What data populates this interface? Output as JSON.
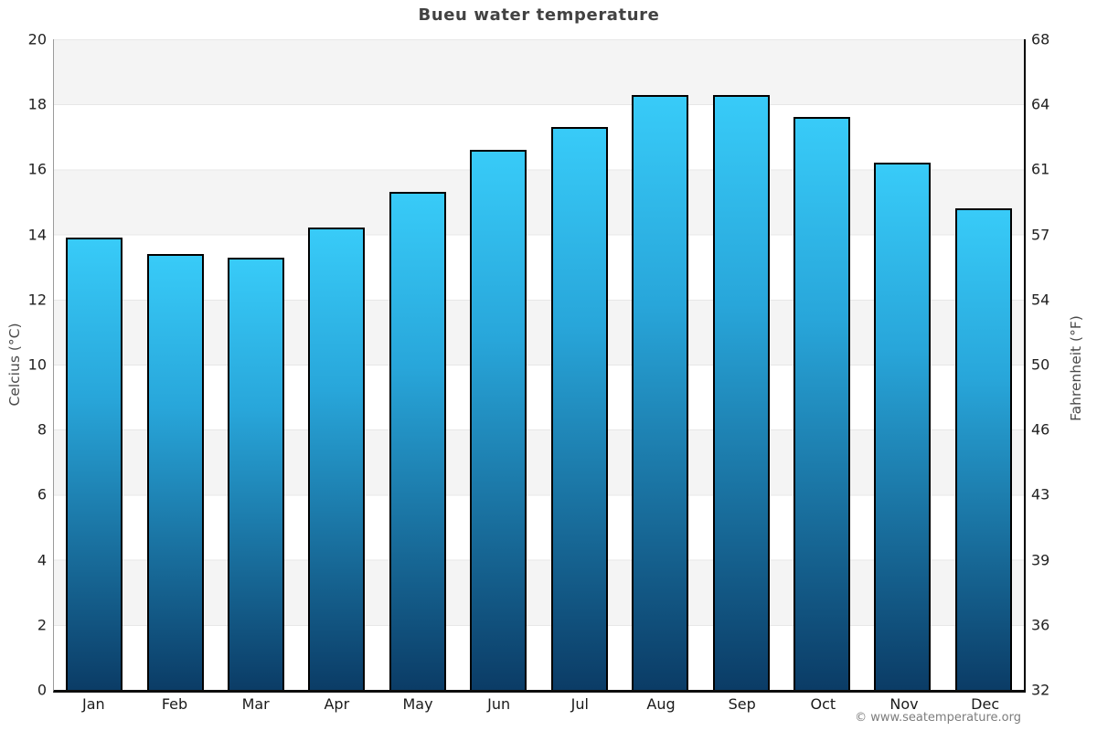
{
  "page": {
    "footer": "© www.seatemperature.org"
  },
  "chart_data": {
    "type": "bar",
    "title": "Bueu water temperature",
    "categories": [
      "Jan",
      "Feb",
      "Mar",
      "Apr",
      "May",
      "Jun",
      "Jul",
      "Aug",
      "Sep",
      "Oct",
      "Nov",
      "Dec"
    ],
    "values": [
      13.9,
      13.4,
      13.3,
      14.2,
      15.3,
      16.6,
      17.3,
      18.3,
      18.3,
      17.6,
      16.2,
      14.8
    ],
    "ylabel_left": "Celcius (°C)",
    "ylabel_right": "Fahrenheit (°F)",
    "ylim": [
      0,
      20
    ],
    "yticks_left": [
      20,
      18,
      16,
      14,
      12,
      10,
      8,
      6,
      4,
      2,
      0
    ],
    "yticks_right": [
      68,
      64,
      61,
      57,
      54,
      50,
      46,
      43,
      39,
      36,
      32
    ],
    "legend": "none",
    "grid": "alternating horizontal bands every 2 °C",
    "colors": {
      "bar_gradient_top": "#38cbf8",
      "bar_gradient_mid": "#28a6da",
      "bar_gradient_bottom": "#0b3c66",
      "bar_border": "#000000",
      "band": "#f4f4f4",
      "title_text": "#424242",
      "tick_text": "#222222",
      "axis_label_text": "#4a4a4a",
      "footer_text": "#7d7d7d"
    }
  }
}
